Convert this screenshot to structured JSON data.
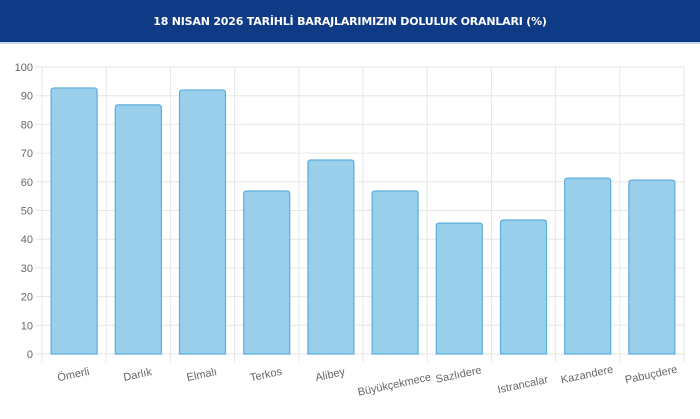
{
  "header": {
    "title": "18 NISAN 2026 TARİHLİ BARAJLARIMIZIN DOLULUK ORANLARI (%)"
  },
  "colors": {
    "header_bg": "#0e3a86",
    "bar_fill": "#99cfeb",
    "bar_border": "#5aaedc",
    "grid": "#e6e6e6",
    "tick_text": "#666666"
  },
  "chart_data": {
    "type": "bar",
    "title": "18 NISAN 2026 TARİHLİ BARAJLARIMIZIN DOLULUK ORANLARI (%)",
    "xlabel": "",
    "ylabel": "",
    "ylim": [
      0,
      100
    ],
    "yticks": [
      0,
      10,
      20,
      30,
      40,
      50,
      60,
      70,
      80,
      90,
      100
    ],
    "grid": true,
    "legend": "none",
    "categories": [
      "Ömerli",
      "Darlık",
      "Elmalı",
      "Terkos",
      "Alibey",
      "Büyükçekmece",
      "Sazlıdere",
      "Istrancalar",
      "Kazandere",
      "Pabuçdere"
    ],
    "values": [
      92.7,
      86.8,
      92.0,
      56.8,
      67.6,
      56.8,
      45.6,
      46.7,
      61.3,
      60.6
    ]
  }
}
